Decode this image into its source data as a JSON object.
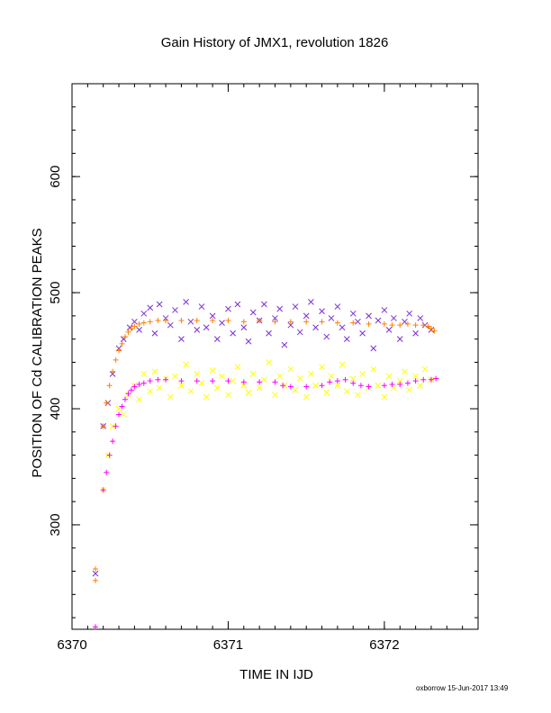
{
  "chart_data": {
    "type": "scatter",
    "title": "Gain History of JMX1, revolution 1826",
    "xlabel": "TIME IN IJD",
    "ylabel": "POSITION OF Cd CALIBRATION PEAKS",
    "xlim": [
      6370,
      6372.6
    ],
    "ylim": [
      210,
      680
    ],
    "xticks": [
      6370,
      6371,
      6372
    ],
    "yticks": [
      300,
      400,
      500,
      600
    ],
    "grid": false,
    "legend": "none",
    "series": [
      {
        "color": "#7b2fd6",
        "marker": "x",
        "points": [
          [
            6370.15,
            258
          ],
          [
            6370.2,
            385
          ],
          [
            6370.23,
            405
          ],
          [
            6370.26,
            430
          ],
          [
            6370.3,
            452
          ],
          [
            6370.33,
            460
          ],
          [
            6370.37,
            470
          ],
          [
            6370.4,
            475
          ],
          [
            6370.43,
            468
          ],
          [
            6370.46,
            482
          ],
          [
            6370.5,
            487
          ],
          [
            6370.53,
            465
          ],
          [
            6370.56,
            490
          ],
          [
            6370.6,
            478
          ],
          [
            6370.63,
            472
          ],
          [
            6370.66,
            485
          ],
          [
            6370.7,
            460
          ],
          [
            6370.73,
            492
          ],
          [
            6370.76,
            475
          ],
          [
            6370.8,
            468
          ],
          [
            6370.83,
            488
          ],
          [
            6370.86,
            470
          ],
          [
            6370.9,
            480
          ],
          [
            6370.93,
            460
          ],
          [
            6370.96,
            474
          ],
          [
            6371.0,
            486
          ],
          [
            6371.03,
            465
          ],
          [
            6371.06,
            490
          ],
          [
            6371.1,
            470
          ],
          [
            6371.13,
            458
          ],
          [
            6371.16,
            483
          ],
          [
            6371.2,
            476
          ],
          [
            6371.23,
            490
          ],
          [
            6371.26,
            465
          ],
          [
            6371.3,
            478
          ],
          [
            6371.33,
            486
          ],
          [
            6371.36,
            455
          ],
          [
            6371.4,
            472
          ],
          [
            6371.43,
            488
          ],
          [
            6371.46,
            466
          ],
          [
            6371.5,
            480
          ],
          [
            6371.53,
            492
          ],
          [
            6371.56,
            470
          ],
          [
            6371.6,
            484
          ],
          [
            6371.63,
            462
          ],
          [
            6371.66,
            478
          ],
          [
            6371.7,
            488
          ],
          [
            6371.73,
            470
          ],
          [
            6371.76,
            460
          ],
          [
            6371.8,
            482
          ],
          [
            6371.83,
            475
          ],
          [
            6371.86,
            465
          ],
          [
            6371.9,
            480
          ],
          [
            6371.93,
            452
          ],
          [
            6371.96,
            476
          ],
          [
            6372.0,
            485
          ],
          [
            6372.03,
            468
          ],
          [
            6372.06,
            478
          ],
          [
            6372.1,
            460
          ],
          [
            6372.13,
            475
          ],
          [
            6372.16,
            482
          ],
          [
            6372.2,
            465
          ],
          [
            6372.23,
            478
          ],
          [
            6372.26,
            472
          ],
          [
            6372.3,
            468
          ]
        ]
      },
      {
        "color": "#ff7f00",
        "marker": "+",
        "points": [
          [
            6370.15,
            252
          ],
          [
            6370.15,
            262
          ],
          [
            6370.2,
            385
          ],
          [
            6370.22,
            405
          ],
          [
            6370.24,
            420
          ],
          [
            6370.26,
            432
          ],
          [
            6370.28,
            442
          ],
          [
            6370.3,
            450
          ],
          [
            6370.32,
            456
          ],
          [
            6370.34,
            462
          ],
          [
            6370.36,
            466
          ],
          [
            6370.38,
            469
          ],
          [
            6370.4,
            471
          ],
          [
            6370.43,
            473
          ],
          [
            6370.46,
            474
          ],
          [
            6370.5,
            475
          ],
          [
            6370.55,
            476
          ],
          [
            6370.6,
            476
          ],
          [
            6370.7,
            476
          ],
          [
            6370.8,
            476
          ],
          [
            6370.9,
            476
          ],
          [
            6371.0,
            476
          ],
          [
            6371.1,
            475
          ],
          [
            6371.2,
            476
          ],
          [
            6371.3,
            475
          ],
          [
            6371.4,
            475
          ],
          [
            6371.5,
            475
          ],
          [
            6371.6,
            475
          ],
          [
            6371.7,
            474
          ],
          [
            6371.8,
            474
          ],
          [
            6371.9,
            473
          ],
          [
            6372.0,
            473
          ],
          [
            6372.05,
            472
          ],
          [
            6372.1,
            472
          ],
          [
            6372.15,
            473
          ],
          [
            6372.2,
            472
          ],
          [
            6372.25,
            472
          ],
          [
            6372.28,
            471
          ],
          [
            6372.3,
            469
          ],
          [
            6372.32,
            467
          ]
        ]
      },
      {
        "color": "#ffff00",
        "marker": "x",
        "points": [
          [
            6370.2,
            330
          ],
          [
            6370.23,
            360
          ],
          [
            6370.26,
            385
          ],
          [
            6370.3,
            400
          ],
          [
            6370.33,
            395
          ],
          [
            6370.36,
            412
          ],
          [
            6370.4,
            420
          ],
          [
            6370.43,
            408
          ],
          [
            6370.46,
            430
          ],
          [
            6370.5,
            415
          ],
          [
            6370.53,
            432
          ],
          [
            6370.56,
            418
          ],
          [
            6370.6,
            426
          ],
          [
            6370.63,
            410
          ],
          [
            6370.66,
            428
          ],
          [
            6370.7,
            420
          ],
          [
            6370.73,
            438
          ],
          [
            6370.76,
            415
          ],
          [
            6370.8,
            430
          ],
          [
            6370.83,
            422
          ],
          [
            6370.86,
            410
          ],
          [
            6370.9,
            433
          ],
          [
            6370.93,
            418
          ],
          [
            6370.96,
            428
          ],
          [
            6371.0,
            412
          ],
          [
            6371.03,
            424
          ],
          [
            6371.06,
            436
          ],
          [
            6371.1,
            420
          ],
          [
            6371.13,
            414
          ],
          [
            6371.16,
            430
          ],
          [
            6371.2,
            418
          ],
          [
            6371.23,
            425
          ],
          [
            6371.26,
            440
          ],
          [
            6371.3,
            412
          ],
          [
            6371.33,
            428
          ],
          [
            6371.36,
            420
          ],
          [
            6371.4,
            434
          ],
          [
            6371.43,
            416
          ],
          [
            6371.46,
            426
          ],
          [
            6371.5,
            410
          ],
          [
            6371.53,
            430
          ],
          [
            6371.56,
            420
          ],
          [
            6371.6,
            436
          ],
          [
            6371.63,
            414
          ],
          [
            6371.66,
            428
          ],
          [
            6371.7,
            420
          ],
          [
            6371.73,
            438
          ],
          [
            6371.76,
            415
          ],
          [
            6371.8,
            426
          ],
          [
            6371.83,
            412
          ],
          [
            6371.86,
            430
          ],
          [
            6371.9,
            418
          ],
          [
            6371.93,
            434
          ],
          [
            6371.96,
            420
          ],
          [
            6372.0,
            410
          ],
          [
            6372.03,
            428
          ],
          [
            6372.06,
            418
          ],
          [
            6372.1,
            424
          ],
          [
            6372.13,
            432
          ],
          [
            6372.16,
            416
          ],
          [
            6372.2,
            428
          ],
          [
            6372.23,
            420
          ],
          [
            6372.26,
            434
          ],
          [
            6372.3,
            425
          ]
        ]
      },
      {
        "color": "#ff00ff",
        "marker": "+",
        "points": [
          [
            6370.15,
            212
          ],
          [
            6370.2,
            330
          ],
          [
            6370.22,
            345
          ],
          [
            6370.24,
            360
          ],
          [
            6370.26,
            372
          ],
          [
            6370.28,
            385
          ],
          [
            6370.3,
            395
          ],
          [
            6370.32,
            402
          ],
          [
            6370.34,
            408
          ],
          [
            6370.36,
            413
          ],
          [
            6370.38,
            416
          ],
          [
            6370.4,
            419
          ],
          [
            6370.43,
            421
          ],
          [
            6370.46,
            422
          ],
          [
            6370.5,
            424
          ],
          [
            6370.55,
            425
          ],
          [
            6370.6,
            425
          ],
          [
            6370.7,
            424
          ],
          [
            6370.8,
            424
          ],
          [
            6370.9,
            424
          ],
          [
            6371.0,
            424
          ],
          [
            6371.1,
            423
          ],
          [
            6371.2,
            423
          ],
          [
            6371.3,
            423
          ],
          [
            6371.35,
            420
          ],
          [
            6371.4,
            419
          ],
          [
            6371.5,
            419
          ],
          [
            6371.6,
            420
          ],
          [
            6371.65,
            423
          ],
          [
            6371.7,
            424
          ],
          [
            6371.75,
            425
          ],
          [
            6371.8,
            422
          ],
          [
            6371.85,
            420
          ],
          [
            6371.9,
            419
          ],
          [
            6372.0,
            420
          ],
          [
            6372.05,
            421
          ],
          [
            6372.1,
            421
          ],
          [
            6372.15,
            422
          ],
          [
            6372.2,
            424
          ],
          [
            6372.25,
            425
          ],
          [
            6372.3,
            425
          ],
          [
            6372.33,
            426
          ]
        ]
      }
    ]
  },
  "footer": "oxborrow 15-Jun-2017 13:49"
}
